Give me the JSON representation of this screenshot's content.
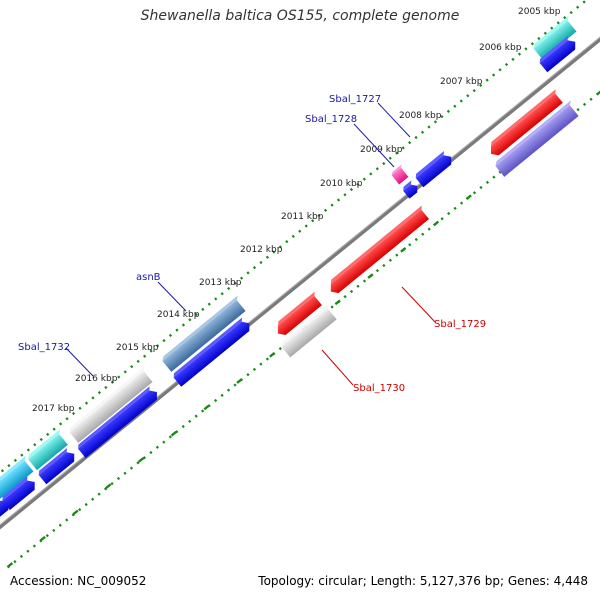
{
  "title": "Shewanella baltica OS155, complete genome",
  "footer": {
    "accession_label": "Accession:",
    "accession": "NC_009052",
    "topology_label": "Topology:",
    "topology": "circular",
    "length_label": "Length:",
    "length": "5,127,376 bp",
    "genes_label": "Genes:",
    "genes": "4,448"
  },
  "ticks": [
    "2005 kbp",
    "2006 kbp",
    "2007 kbp",
    "2008 kbp",
    "2009 kbp",
    "2010 kbp",
    "2011 kbp",
    "2012 kbp",
    "2013 kbp",
    "2014 kbp",
    "2015 kbp",
    "2016 kbp",
    "2017 kbp"
  ],
  "gene_labels": {
    "forward": [
      "Sbal_1727",
      "Sbal_1728",
      "asnB",
      "Sbal_1732"
    ],
    "reverse": [
      "Sbal_1729",
      "Sbal_1730"
    ]
  },
  "colors": {
    "forward_label": "#1a1aa6",
    "reverse_label": "#cc0000",
    "tick_label": "#222222",
    "backbone": "#808080",
    "dots": "#1a8a1a",
    "cds_blue": "#0a0ae6",
    "cds_teal": "#1fc2c2",
    "cds_steelblue": "#4a7fb0",
    "cds_gray": "#c0c0c0",
    "cds_red": "#ee0000",
    "cds_pink": "#ee2aa0",
    "cds_purple": "#7268d6",
    "cds_cyan": "#18b8e6"
  }
}
